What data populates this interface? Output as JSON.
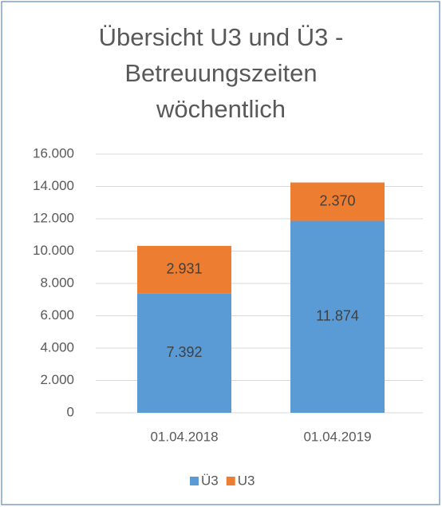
{
  "chart_data": {
    "type": "stacked_bar",
    "title": "Übersicht U3 und Ü3 - Betreuungszeiten wöchentlich",
    "categories": [
      "01.04.2018",
      "01.04.2019"
    ],
    "series": [
      {
        "name": "Ü3",
        "color": "#5b9bd5",
        "values": [
          7392,
          11874
        ],
        "value_labels": [
          "7.392",
          "11.874"
        ]
      },
      {
        "name": "U3",
        "color": "#ed7d31",
        "values": [
          2931,
          2370
        ],
        "value_labels": [
          "2.931",
          "2.370"
        ]
      }
    ],
    "ylim": [
      0,
      16000
    ],
    "yticks": [
      0,
      {
        "value": 2000,
        "label": "2.000"
      },
      {
        "value": 4000,
        "label": "4.000"
      },
      {
        "value": 6000,
        "label": "6.000"
      },
      {
        "value": 8000,
        "label": "8.000"
      },
      {
        "value": 10000,
        "label": "10.000"
      },
      {
        "value": 12000,
        "label": "12.000"
      },
      {
        "value": 14000,
        "label": "14.000"
      },
      {
        "value": 16000,
        "label": "16.000"
      }
    ],
    "grid": true,
    "legend": "bottom"
  }
}
